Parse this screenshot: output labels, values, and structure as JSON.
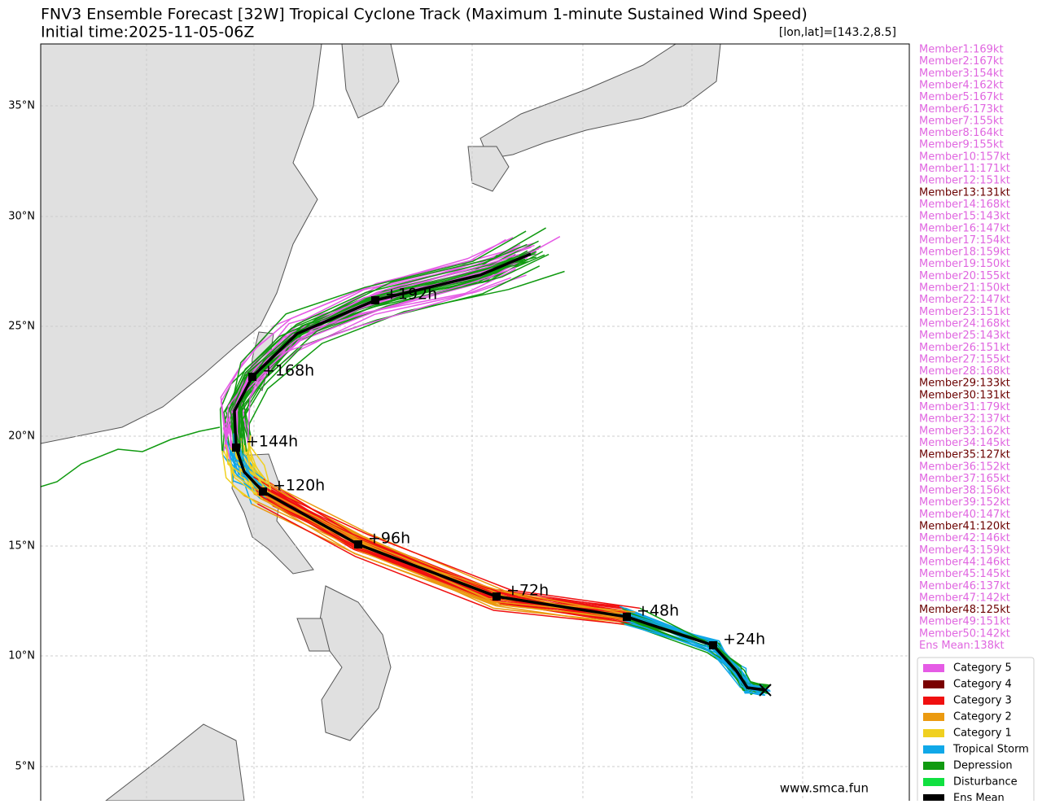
{
  "header": {
    "title": "FNV3 Ensemble Forecast [32W] Tropical Cyclone Track (Maximum 1-minute Sustained Wind Speed)",
    "initial_time": "Initial time:2025-11-05-06Z",
    "position": "[lon,lat]=[143.2,8.5]"
  },
  "lat_ticks": [
    "35°N",
    "30°N",
    "25°N",
    "20°N",
    "15°N",
    "10°N",
    "5°N"
  ],
  "track_labels": [
    "+24h",
    "+48h",
    "+72h",
    "+96h",
    "+120h",
    "+144h",
    "+168h",
    "+192h"
  ],
  "members": [
    {
      "label": "Member1:169kt",
      "color": "#e066e0"
    },
    {
      "label": "Member2:167kt",
      "color": "#e066e0"
    },
    {
      "label": "Member3:154kt",
      "color": "#e066e0"
    },
    {
      "label": "Member4:162kt",
      "color": "#e066e0"
    },
    {
      "label": "Member5:167kt",
      "color": "#e066e0"
    },
    {
      "label": "Member6:173kt",
      "color": "#e066e0"
    },
    {
      "label": "Member7:155kt",
      "color": "#e066e0"
    },
    {
      "label": "Member8:164kt",
      "color": "#e066e0"
    },
    {
      "label": "Member9:155kt",
      "color": "#e066e0"
    },
    {
      "label": "Member10:157kt",
      "color": "#e066e0"
    },
    {
      "label": "Member11:171kt",
      "color": "#e066e0"
    },
    {
      "label": "Member12:151kt",
      "color": "#e066e0"
    },
    {
      "label": "Member13:131kt",
      "color": "#6b0000"
    },
    {
      "label": "Member14:168kt",
      "color": "#e066e0"
    },
    {
      "label": "Member15:143kt",
      "color": "#e066e0"
    },
    {
      "label": "Member16:147kt",
      "color": "#e066e0"
    },
    {
      "label": "Member17:154kt",
      "color": "#e066e0"
    },
    {
      "label": "Member18:159kt",
      "color": "#e066e0"
    },
    {
      "label": "Member19:150kt",
      "color": "#e066e0"
    },
    {
      "label": "Member20:155kt",
      "color": "#e066e0"
    },
    {
      "label": "Member21:150kt",
      "color": "#e066e0"
    },
    {
      "label": "Member22:147kt",
      "color": "#e066e0"
    },
    {
      "label": "Member23:151kt",
      "color": "#e066e0"
    },
    {
      "label": "Member24:168kt",
      "color": "#e066e0"
    },
    {
      "label": "Member25:143kt",
      "color": "#e066e0"
    },
    {
      "label": "Member26:151kt",
      "color": "#e066e0"
    },
    {
      "label": "Member27:155kt",
      "color": "#e066e0"
    },
    {
      "label": "Member28:168kt",
      "color": "#e066e0"
    },
    {
      "label": "Member29:133kt",
      "color": "#6b0000"
    },
    {
      "label": "Member30:131kt",
      "color": "#6b0000"
    },
    {
      "label": "Member31:179kt",
      "color": "#e066e0"
    },
    {
      "label": "Member32:137kt",
      "color": "#e066e0"
    },
    {
      "label": "Member33:162kt",
      "color": "#e066e0"
    },
    {
      "label": "Member34:145kt",
      "color": "#e066e0"
    },
    {
      "label": "Member35:127kt",
      "color": "#6b0000"
    },
    {
      "label": "Member36:152kt",
      "color": "#e066e0"
    },
    {
      "label": "Member37:165kt",
      "color": "#e066e0"
    },
    {
      "label": "Member38:156kt",
      "color": "#e066e0"
    },
    {
      "label": "Member39:152kt",
      "color": "#e066e0"
    },
    {
      "label": "Member40:147kt",
      "color": "#e066e0"
    },
    {
      "label": "Member41:120kt",
      "color": "#6b0000"
    },
    {
      "label": "Member42:146kt",
      "color": "#e066e0"
    },
    {
      "label": "Member43:159kt",
      "color": "#e066e0"
    },
    {
      "label": "Member44:146kt",
      "color": "#e066e0"
    },
    {
      "label": "Member45:145kt",
      "color": "#e066e0"
    },
    {
      "label": "Member46:137kt",
      "color": "#e066e0"
    },
    {
      "label": "Member47:142kt",
      "color": "#e066e0"
    },
    {
      "label": "Member48:125kt",
      "color": "#6b0000"
    },
    {
      "label": "Member49:151kt",
      "color": "#e066e0"
    },
    {
      "label": "Member50:142kt",
      "color": "#e066e0"
    },
    {
      "label": "Ens Mean:138kt",
      "color": "#e066e0"
    }
  ],
  "legend": [
    {
      "name": "Category 5",
      "color": "#e55be5"
    },
    {
      "name": "Category 4",
      "color": "#7a0000"
    },
    {
      "name": "Category 3",
      "color": "#f01010"
    },
    {
      "name": "Category 2",
      "color": "#eb9a10"
    },
    {
      "name": "Category 1",
      "color": "#f0d020"
    },
    {
      "name": "Tropical Storm",
      "color": "#10a8e8"
    },
    {
      "name": "Depression",
      "color": "#109a10"
    },
    {
      "name": "Disturbance",
      "color": "#10e040"
    },
    {
      "name": "Ens Mean",
      "color": "#000000"
    }
  ],
  "watermark": "www.smca.fun"
}
